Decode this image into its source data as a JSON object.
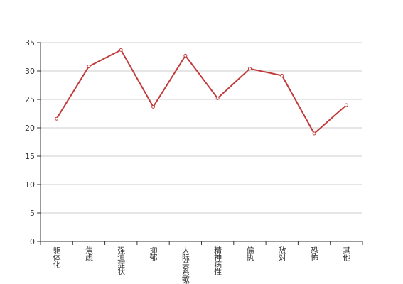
{
  "chart_data": {
    "type": "line",
    "categories": [
      "躯体化",
      "焦虑",
      "强迫症状",
      "抑郁",
      "人际关系敏感",
      "精神病性",
      "偏执",
      "敌对",
      "恐怖",
      "其他"
    ],
    "series": [
      {
        "name": null,
        "color": "#c23b3b",
        "values": [
          21.6,
          30.8,
          33.7,
          23.7,
          32.7,
          25.2,
          30.4,
          29.2,
          19.0,
          24.0
        ]
      }
    ],
    "ylim": [
      0,
      35
    ],
    "yticks": [
      0,
      5,
      10,
      15,
      20,
      25,
      30,
      35
    ],
    "grid": true
  }
}
